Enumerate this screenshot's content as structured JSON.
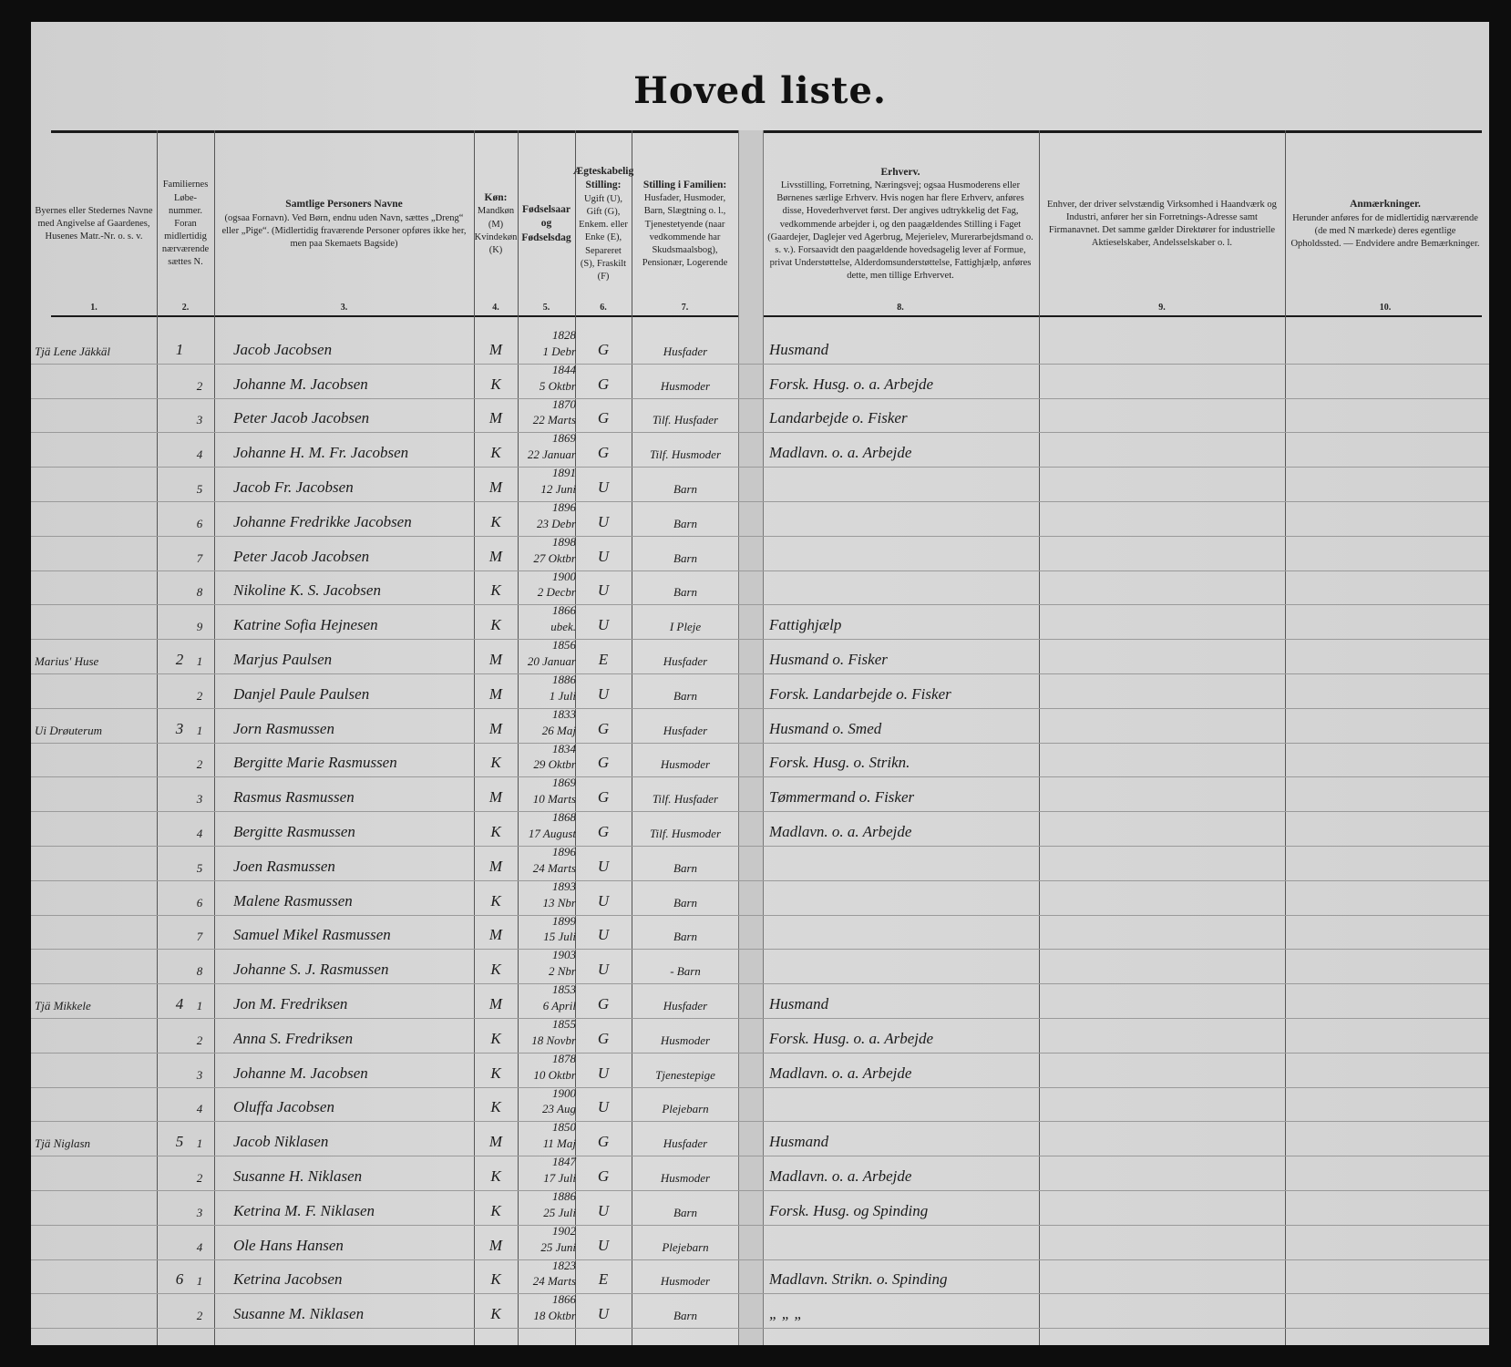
{
  "title": "Hoved liste.",
  "headers": [
    {
      "num": "1.",
      "text": "Byernes eller Stedernes Navne med Angivelse af Gaardenes, Husenes Matr.-Nr. o. s. v."
    },
    {
      "num": "2.",
      "text": "Familiernes Løbe-nummer. Foran midlertidig nærværende sættes N."
    },
    {
      "num": "3.",
      "title": "Samtlige Personers Navne",
      "text": "(ogsaa Fornavn). Ved Børn, endnu uden Navn, sættes „Dreng“ eller „Pige“. (Midlertidig fraværende Personer opføres ikke her, men paa Skemaets Bagside)"
    },
    {
      "num": "4.",
      "title": "Køn:",
      "text": "Mandkøn (M) Kvindekøn (K)"
    },
    {
      "num": "5.",
      "title": "Fødselsaar og Fødselsdag",
      "text": ""
    },
    {
      "num": "6.",
      "title": "Ægteskabelig Stilling:",
      "text": "Ugift (U), Gift (G), Enkem. eller Enke (E), Separeret (S), Fraskilt (F)"
    },
    {
      "num": "7.",
      "title": "Stilling i Familien:",
      "text": "Husfader, Husmoder, Barn, Slægtning o. l., Tjenestetyende (naar vedkommende har Skudsmaalsbog), Pensionær, Logerende"
    },
    {
      "num": "8.",
      "title": "Erhverv.",
      "text": "Livsstilling, Forretning, Næringsvej; ogsaa Husmoderens eller Børnenes særlige Erhverv. Hvis nogen har flere Erhverv, anføres disse, Hovederhvervet først. Der angives udtrykkelig det Fag, vedkommende arbejder i, og den paagældendes Stilling i Faget (Gaardejer, Daglejer ved Agerbrug, Mejerielev, Murerarbejdsmand o. s. v.). Forsaavidt den paagældende hovedsagelig lever af Formue, privat Understøttelse, Alderdomsunderstøttelse, Fattighjælp, anføres dette, men tillige Erhvervet."
    },
    {
      "num": "9.",
      "text": "Enhver, der driver selvstændig Virksomhed i Haandværk og Industri, anfører her sin Forretnings-Adresse samt Firmanavnet. Det samme gælder Direktører for industrielle Aktieselskaber, Andelsselskaber o. l."
    },
    {
      "num": "10.",
      "title": "Anmærkninger.",
      "text": "Herunder anføres for de midlertidig nærværende (de med N mærkede) deres egentlige Opholdssted. — Endvidere andre Bemærkninger."
    }
  ],
  "rows": [
    {
      "place": "Tjä Lene Jäkkäl",
      "fam": "1",
      "pn": "",
      "name": "Jacob Jacobsen",
      "sex": "M",
      "year": "1828",
      "day": "1 Debr",
      "civil": "G",
      "role": "Husfader",
      "occ": "Husmand"
    },
    {
      "place": "",
      "fam": "",
      "pn": "2",
      "name": "Johanne M. Jacobsen",
      "sex": "K",
      "year": "1844",
      "day": "5 Oktbr",
      "civil": "G",
      "role": "Husmoder",
      "occ": "Forsk. Husg. o. a. Arbejde"
    },
    {
      "place": "",
      "fam": "",
      "pn": "3",
      "name": "Peter Jacob Jacobsen",
      "sex": "M",
      "year": "1870",
      "day": "22 Marts",
      "civil": "G",
      "role": "Tilf. Husfader",
      "occ": "Landarbejde o. Fisker"
    },
    {
      "place": "",
      "fam": "",
      "pn": "4",
      "name": "Johanne H. M. Fr. Jacobsen",
      "sex": "K",
      "year": "1869",
      "day": "22 Januar",
      "civil": "G",
      "role": "Tilf. Husmoder",
      "occ": "Madlavn. o. a. Arbejde"
    },
    {
      "place": "",
      "fam": "",
      "pn": "5",
      "name": "Jacob Fr. Jacobsen",
      "sex": "M",
      "year": "1891",
      "day": "12 Juni",
      "civil": "U",
      "role": "Barn",
      "occ": ""
    },
    {
      "place": "",
      "fam": "",
      "pn": "6",
      "name": "Johanne Fredrikke Jacobsen",
      "sex": "K",
      "year": "1896",
      "day": "23 Debr",
      "civil": "U",
      "role": "Barn",
      "occ": ""
    },
    {
      "place": "",
      "fam": "",
      "pn": "7",
      "name": "Peter Jacob Jacobsen",
      "sex": "M",
      "year": "1898",
      "day": "27 Oktbr",
      "civil": "U",
      "role": "Barn",
      "occ": ""
    },
    {
      "place": "",
      "fam": "",
      "pn": "8",
      "name": "Nikoline K. S. Jacobsen",
      "sex": "K",
      "year": "1900",
      "day": "2 Decbr",
      "civil": "U",
      "role": "Barn",
      "occ": ""
    },
    {
      "place": "",
      "fam": "",
      "pn": "9",
      "name": "Katrine Sofia Hejnesen",
      "sex": "K",
      "year": "1866",
      "day": "ubek.",
      "civil": "U",
      "role": "I Pleje",
      "occ": "Fattighjælp"
    },
    {
      "place": "Marius' Huse",
      "fam": "2",
      "pn": "1",
      "name": "Marjus Paulsen",
      "sex": "M",
      "year": "1856",
      "day": "20 Januar",
      "civil": "E",
      "role": "Husfader",
      "occ": "Husmand o. Fisker"
    },
    {
      "place": "",
      "fam": "",
      "pn": "2",
      "name": "Danjel Paule Paulsen",
      "sex": "M",
      "year": "1886",
      "day": "1 Juli",
      "civil": "U",
      "role": "Barn",
      "occ": "Forsk. Landarbejde o. Fisker"
    },
    {
      "place": "Ui Drøuterum",
      "fam": "3",
      "pn": "1",
      "name": "Jorn Rasmussen",
      "sex": "M",
      "year": "1833",
      "day": "26 Maj",
      "civil": "G",
      "role": "Husfader",
      "occ": "Husmand o. Smed"
    },
    {
      "place": "",
      "fam": "",
      "pn": "2",
      "name": "Bergitte Marie Rasmussen",
      "sex": "K",
      "year": "1834",
      "day": "29 Oktbr",
      "civil": "G",
      "role": "Husmoder",
      "occ": "Forsk. Husg. o. Strikn."
    },
    {
      "place": "",
      "fam": "",
      "pn": "3",
      "name": "Rasmus Rasmussen",
      "sex": "M",
      "year": "1869",
      "day": "10 Marts",
      "civil": "G",
      "role": "Tilf. Husfader",
      "occ": "Tømmermand o. Fisker"
    },
    {
      "place": "",
      "fam": "",
      "pn": "4",
      "name": "Bergitte Rasmussen",
      "sex": "K",
      "year": "1868",
      "day": "17 August",
      "civil": "G",
      "role": "Tilf. Husmoder",
      "occ": "Madlavn. o. a. Arbejde"
    },
    {
      "place": "",
      "fam": "",
      "pn": "5",
      "name": "Joen Rasmussen",
      "sex": "M",
      "year": "1896",
      "day": "24 Marts",
      "civil": "U",
      "role": "Barn",
      "occ": ""
    },
    {
      "place": "",
      "fam": "",
      "pn": "6",
      "name": "Malene Rasmussen",
      "sex": "K",
      "year": "1893",
      "day": "13 Nbr",
      "civil": "U",
      "role": "Barn",
      "occ": ""
    },
    {
      "place": "",
      "fam": "",
      "pn": "7",
      "name": "Samuel Mikel Rasmussen",
      "sex": "M",
      "year": "1899",
      "day": "15 Juli",
      "civil": "U",
      "role": "Barn",
      "occ": ""
    },
    {
      "place": "",
      "fam": "",
      "pn": "8",
      "name": "Johanne S. J. Rasmussen",
      "sex": "K",
      "year": "1903",
      "day": "2 Nbr",
      "civil": "U",
      "role": "- Barn",
      "occ": ""
    },
    {
      "place": "Tjä Mikkele",
      "fam": "4",
      "pn": "1",
      "name": "Jon M. Fredriksen",
      "sex": "M",
      "year": "1853",
      "day": "6 April",
      "civil": "G",
      "role": "Husfader",
      "occ": "Husmand"
    },
    {
      "place": "",
      "fam": "",
      "pn": "2",
      "name": "Anna S. Fredriksen",
      "sex": "K",
      "year": "1855",
      "day": "18 Novbr",
      "civil": "G",
      "role": "Husmoder",
      "occ": "Forsk. Husg. o. a. Arbejde"
    },
    {
      "place": "",
      "fam": "",
      "pn": "3",
      "name": "Johanne M. Jacobsen",
      "sex": "K",
      "year": "1878",
      "day": "10 Oktbr",
      "civil": "U",
      "role": "Tjenestepige",
      "occ": "Madlavn. o. a. Arbejde"
    },
    {
      "place": "",
      "fam": "",
      "pn": "4",
      "name": "Oluffa Jacobsen",
      "sex": "K",
      "year": "1900",
      "day": "23 Aug",
      "civil": "U",
      "role": "Plejebarn",
      "occ": ""
    },
    {
      "place": "Tjä Niglasn",
      "fam": "5",
      "pn": "1",
      "name": "Jacob Niklasen",
      "sex": "M",
      "year": "1850",
      "day": "11 Maj",
      "civil": "G",
      "role": "Husfader",
      "occ": "Husmand"
    },
    {
      "place": "",
      "fam": "",
      "pn": "2",
      "name": "Susanne H. Niklasen",
      "sex": "K",
      "year": "1847",
      "day": "17 Juli",
      "civil": "G",
      "role": "Husmoder",
      "occ": "Madlavn. o. a. Arbejde"
    },
    {
      "place": "",
      "fam": "",
      "pn": "3",
      "name": "Ketrina M. F. Niklasen",
      "sex": "K",
      "year": "1886",
      "day": "25 Juli",
      "civil": "U",
      "role": "Barn",
      "occ": "Forsk. Husg. og Spinding"
    },
    {
      "place": "",
      "fam": "",
      "pn": "4",
      "name": "Ole Hans Hansen",
      "sex": "M",
      "year": "1902",
      "day": "25 Juni",
      "civil": "U",
      "role": "Plejebarn",
      "occ": ""
    },
    {
      "place": "",
      "fam": "6",
      "pn": "1",
      "name": "Ketrina Jacobsen",
      "sex": "K",
      "year": "1823",
      "day": "24 Marts",
      "civil": "E",
      "role": "Husmoder",
      "occ": "Madlavn. Strikn. o. Spinding"
    },
    {
      "place": "",
      "fam": "",
      "pn": "2",
      "name": "Susanne M. Niklasen",
      "sex": "K",
      "year": "1866",
      "day": "18 Oktbr",
      "civil": "U",
      "role": "Barn",
      "occ": "„  „  „"
    }
  ]
}
